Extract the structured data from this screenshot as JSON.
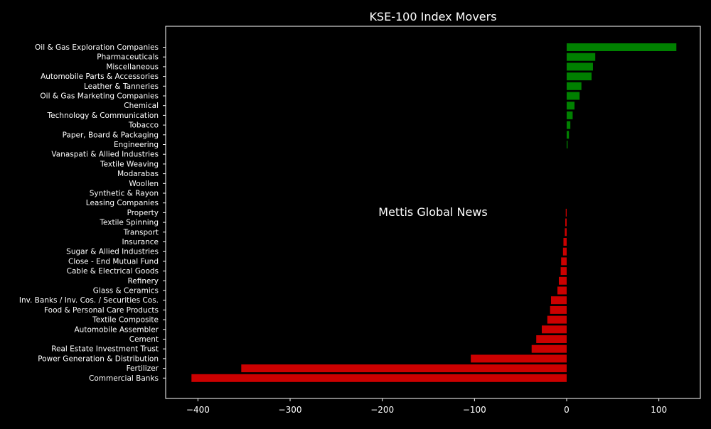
{
  "chart_data": {
    "type": "bar",
    "orientation": "horizontal",
    "title": "KSE-100 Index Movers",
    "xlabel": "",
    "ylabel": "",
    "xlim": [
      -435,
      145
    ],
    "xticks": [
      -400,
      -300,
      -200,
      -100,
      0,
      100
    ],
    "xtick_labels": [
      "−400",
      "−300",
      "−200",
      "−100",
      "0",
      "100"
    ],
    "grid": false,
    "watermark": "Mettis Global News",
    "colors": {
      "positive": "#008000",
      "negative": "#cc0000",
      "background": "#000000",
      "text": "#ffffff",
      "watermark": "#b5651d"
    },
    "categories": [
      "Oil & Gas Exploration Companies",
      "Pharmaceuticals",
      "Miscellaneous",
      "Automobile Parts & Accessories",
      "Leather & Tanneries",
      "Oil & Gas Marketing Companies",
      "Chemical",
      "Technology & Communication",
      "Tobacco",
      "Paper, Board & Packaging",
      "Engineering",
      "Vanaspati & Allied Industries",
      "Textile Weaving",
      "Modarabas",
      "Woollen",
      "Synthetic & Rayon",
      "Leasing Companies",
      "Property",
      "Textile Spinning",
      "Transport",
      "Insurance",
      "Sugar & Allied Industries",
      "Close - End Mutual Fund",
      "Cable & Electrical Goods",
      "Refinery",
      "Glass & Ceramics",
      "Inv. Banks / Inv. Cos. / Securities Cos.",
      "Food & Personal Care Products",
      "Textile Composite",
      "Automobile Assembler",
      "Cement",
      "Real Estate Investment Trust",
      "Power Generation & Distribution",
      "Fertilizer",
      "Commercial Banks"
    ],
    "values": [
      119,
      31,
      28.5,
      27,
      16,
      14,
      8.5,
      6.5,
      4,
      2.5,
      1,
      0,
      0,
      0,
      0,
      0,
      0,
      -1,
      -1.5,
      -2,
      -3.5,
      -4,
      -6,
      -6.5,
      -8.5,
      -10,
      -17,
      -18,
      -21,
      -27,
      -33,
      -38,
      -104,
      -353,
      -407
    ]
  }
}
